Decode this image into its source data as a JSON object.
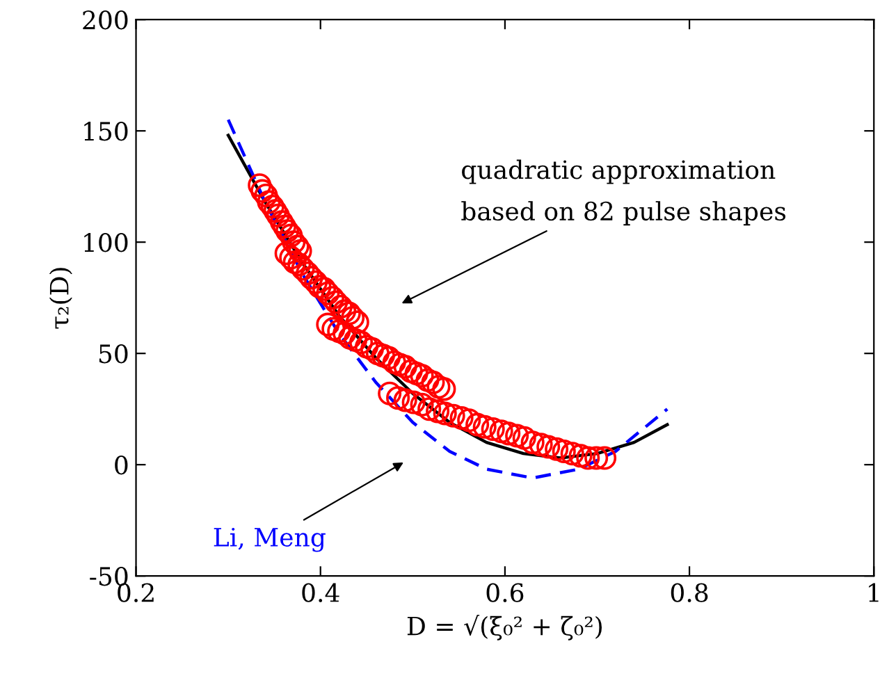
{
  "chart_data": {
    "type": "line",
    "xlabel": "D = √(ξ₀² + ζ₀²)",
    "ylabel": "τ₂(D)",
    "xlim": [
      0.2,
      1
    ],
    "ylim": [
      -50,
      200
    ],
    "xticks": [
      0.2,
      0.4,
      0.6,
      0.8,
      1
    ],
    "yticks": [
      {
        "value": -50,
        "label": "-50"
      },
      0,
      50,
      100,
      150,
      200
    ],
    "grid": false,
    "legend": false,
    "series": [
      {
        "color": "#000000",
        "line_style": "solid",
        "marker": "none",
        "x": [
          0.3,
          0.34,
          0.38,
          0.42,
          0.46,
          0.5,
          0.54,
          0.58,
          0.62,
          0.66,
          0.7,
          0.74,
          0.776
        ],
        "values": [
          148,
          118,
          91,
          67,
          48,
          32,
          19,
          10,
          5,
          3,
          5,
          10,
          18
        ]
      },
      {
        "name": "Li, Meng",
        "color": "#0000ff",
        "line_style": "dashed",
        "marker": "none",
        "x": [
          0.3,
          0.34,
          0.38,
          0.42,
          0.46,
          0.5,
          0.54,
          0.58,
          0.63,
          0.68,
          0.72,
          0.776
        ],
        "values": [
          155,
          118,
          86,
          59,
          37,
          19,
          6,
          -2,
          -6,
          -2,
          6,
          25
        ]
      },
      {
        "type": "scatter",
        "color": "#ff0000",
        "marker": "circle",
        "x": [
          0.334,
          0.337,
          0.341,
          0.344,
          0.348,
          0.351,
          0.354,
          0.358,
          0.361,
          0.364,
          0.368,
          0.371,
          0.375,
          0.378,
          0.363,
          0.368,
          0.372,
          0.377,
          0.381,
          0.386,
          0.39,
          0.395,
          0.399,
          0.404,
          0.408,
          0.413,
          0.417,
          0.422,
          0.426,
          0.431,
          0.435,
          0.44,
          0.408,
          0.414,
          0.42,
          0.426,
          0.432,
          0.438,
          0.444,
          0.45,
          0.456,
          0.462,
          0.468,
          0.474,
          0.48,
          0.486,
          0.492,
          0.498,
          0.504,
          0.51,
          0.516,
          0.522,
          0.528,
          0.534,
          0.475,
          0.484,
          0.492,
          0.501,
          0.51,
          0.518,
          0.527,
          0.535,
          0.544,
          0.553,
          0.561,
          0.57,
          0.578,
          0.587,
          0.596,
          0.604,
          0.613,
          0.621,
          0.63,
          0.639,
          0.647,
          0.656,
          0.664,
          0.673,
          0.682,
          0.69,
          0.699,
          0.708
        ],
        "values": [
          125.6,
          123,
          121,
          118,
          116,
          114,
          112,
          109,
          107,
          105,
          103,
          100,
          98,
          96,
          95,
          93,
          91,
          90,
          88,
          86,
          84,
          82,
          80,
          79,
          77,
          75,
          73,
          71,
          69,
          68,
          66,
          64,
          63,
          61,
          60,
          59,
          57,
          56,
          55,
          53,
          52,
          50,
          49,
          48,
          46,
          45,
          44,
          42,
          41,
          40,
          38,
          37,
          35,
          34,
          32,
          30,
          29,
          28,
          27,
          25,
          24,
          23,
          22,
          21,
          20,
          18,
          17,
          16,
          15,
          14,
          13,
          12,
          10,
          9,
          8,
          7,
          6,
          5,
          4,
          3,
          3,
          3
        ]
      }
    ],
    "annotations": [
      "quadratic approximation\nbased on 82 pulse shapes"
    ]
  }
}
